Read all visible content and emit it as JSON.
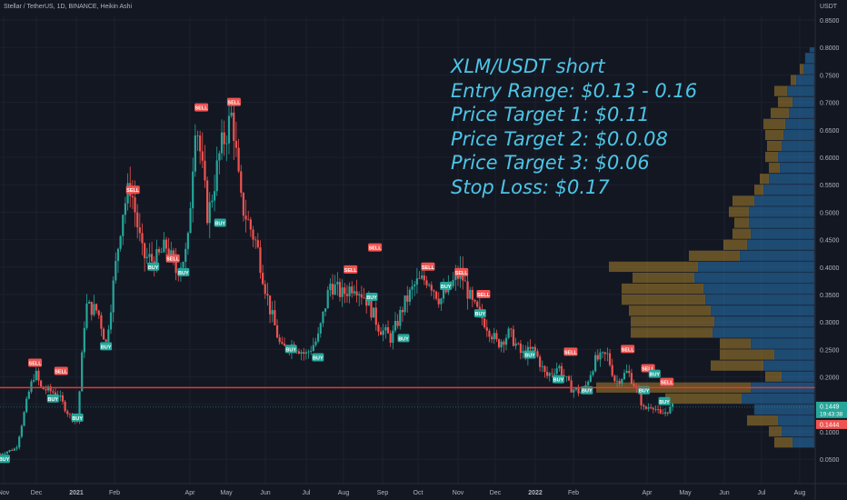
{
  "header": {
    "title": "Stellar / TetherUS, 1D, BINANCE, Heikin Ashi"
  },
  "currency_label": "USDT",
  "annotation_lines": [
    "XLM/USDT short",
    "Entry Range: $0.13 - 0.16",
    "Price Target 1: $0.11",
    "Price Target 2: $0.0.08",
    "Price Target 3: $0.06",
    "Stop Loss: $0.17"
  ],
  "colors": {
    "background": "#131722",
    "up_candle": "#26a69a",
    "down_candle": "#ef5350",
    "annotation": "#4dc5e6",
    "support_line": "#e53935",
    "sell_signal": "#ef5350",
    "buy_signal": "#26a69a",
    "volume_profile_up": "#2a7fc1",
    "volume_profile_down": "#c99a2e"
  },
  "chart_data": {
    "type": "candlestick",
    "ylim": [
      0.02,
      0.86
    ],
    "y_ticks": [
      "0.8500",
      "0.8000",
      "0.7500",
      "0.7000",
      "0.6500",
      "0.6000",
      "0.5500",
      "0.5000",
      "0.4500",
      "0.4000",
      "0.3500",
      "0.3000",
      "0.2500",
      "0.2000",
      "0.1500",
      "0.1000",
      "0.0500"
    ],
    "x_ticks": [
      "Nov",
      "Dec",
      "2021",
      "Feb",
      "Apr",
      "May",
      "Jun",
      "Jul",
      "Aug",
      "Sep",
      "Oct",
      "Nov",
      "Dec",
      "2022",
      "Feb",
      "Apr",
      "May",
      "Jun",
      "Jul",
      "Aug"
    ],
    "price_path": [
      [
        0,
        0.06
      ],
      [
        0.02,
        0.07
      ],
      [
        0.035,
        0.17
      ],
      [
        0.043,
        0.21
      ],
      [
        0.05,
        0.18
      ],
      [
        0.07,
        0.17
      ],
      [
        0.085,
        0.13
      ],
      [
        0.095,
        0.12
      ],
      [
        0.105,
        0.33
      ],
      [
        0.12,
        0.32
      ],
      [
        0.13,
        0.26
      ],
      [
        0.15,
        0.5
      ],
      [
        0.16,
        0.55
      ],
      [
        0.175,
        0.42
      ],
      [
        0.19,
        0.41
      ],
      [
        0.205,
        0.44
      ],
      [
        0.215,
        0.39
      ],
      [
        0.23,
        0.43
      ],
      [
        0.24,
        0.68
      ],
      [
        0.255,
        0.49
      ],
      [
        0.27,
        0.61
      ],
      [
        0.285,
        0.68
      ],
      [
        0.295,
        0.52
      ],
      [
        0.305,
        0.48
      ],
      [
        0.315,
        0.44
      ],
      [
        0.33,
        0.33
      ],
      [
        0.345,
        0.25
      ],
      [
        0.36,
        0.26
      ],
      [
        0.375,
        0.24
      ],
      [
        0.39,
        0.27
      ],
      [
        0.405,
        0.37
      ],
      [
        0.42,
        0.35
      ],
      [
        0.435,
        0.37
      ],
      [
        0.45,
        0.34
      ],
      [
        0.465,
        0.29
      ],
      [
        0.48,
        0.27
      ],
      [
        0.495,
        0.33
      ],
      [
        0.51,
        0.37
      ],
      [
        0.525,
        0.38
      ],
      [
        0.54,
        0.34
      ],
      [
        0.555,
        0.37
      ],
      [
        0.565,
        0.39
      ],
      [
        0.58,
        0.33
      ],
      [
        0.595,
        0.3
      ],
      [
        0.61,
        0.26
      ],
      [
        0.625,
        0.28
      ],
      [
        0.64,
        0.24
      ],
      [
        0.655,
        0.25
      ],
      [
        0.67,
        0.2
      ],
      [
        0.685,
        0.22
      ],
      [
        0.7,
        0.18
      ],
      [
        0.715,
        0.17
      ],
      [
        0.73,
        0.23
      ],
      [
        0.745,
        0.24
      ],
      [
        0.755,
        0.19
      ],
      [
        0.77,
        0.21
      ],
      [
        0.78,
        0.18
      ],
      [
        0.79,
        0.14
      ],
      [
        0.8,
        0.15
      ],
      [
        0.81,
        0.13
      ],
      [
        0.82,
        0.14
      ],
      [
        0.825,
        0.145
      ]
    ],
    "signals": [
      {
        "type": "BUY",
        "x": 0.005,
        "price": 0.05
      },
      {
        "type": "SELL",
        "x": 0.043,
        "price": 0.225
      },
      {
        "type": "SELL",
        "x": 0.075,
        "price": 0.21
      },
      {
        "type": "BUY",
        "x": 0.065,
        "price": 0.16
      },
      {
        "type": "BUY",
        "x": 0.095,
        "price": 0.125
      },
      {
        "type": "BUY",
        "x": 0.13,
        "price": 0.255
      },
      {
        "type": "SELL",
        "x": 0.163,
        "price": 0.54
      },
      {
        "type": "BUY",
        "x": 0.188,
        "price": 0.4
      },
      {
        "type": "SELL",
        "x": 0.212,
        "price": 0.415
      },
      {
        "type": "BUY",
        "x": 0.225,
        "price": 0.39
      },
      {
        "type": "SELL",
        "x": 0.247,
        "price": 0.69
      },
      {
        "type": "SELL",
        "x": 0.287,
        "price": 0.7
      },
      {
        "type": "BUY",
        "x": 0.27,
        "price": 0.48
      },
      {
        "type": "BUY",
        "x": 0.357,
        "price": 0.25
      },
      {
        "type": "BUY",
        "x": 0.39,
        "price": 0.235
      },
      {
        "type": "SELL",
        "x": 0.43,
        "price": 0.395
      },
      {
        "type": "SELL",
        "x": 0.46,
        "price": 0.435
      },
      {
        "type": "BUY",
        "x": 0.456,
        "price": 0.345
      },
      {
        "type": "BUY",
        "x": 0.495,
        "price": 0.27
      },
      {
        "type": "SELL",
        "x": 0.525,
        "price": 0.4
      },
      {
        "type": "SELL",
        "x": 0.566,
        "price": 0.39
      },
      {
        "type": "SELL",
        "x": 0.593,
        "price": 0.35
      },
      {
        "type": "BUY",
        "x": 0.547,
        "price": 0.365
      },
      {
        "type": "BUY",
        "x": 0.589,
        "price": 0.315
      },
      {
        "type": "BUY",
        "x": 0.65,
        "price": 0.24
      },
      {
        "type": "SELL",
        "x": 0.7,
        "price": 0.245
      },
      {
        "type": "BUY",
        "x": 0.685,
        "price": 0.195
      },
      {
        "type": "BUY",
        "x": 0.72,
        "price": 0.175
      },
      {
        "type": "SELL",
        "x": 0.77,
        "price": 0.25
      },
      {
        "type": "SELL",
        "x": 0.795,
        "price": 0.215
      },
      {
        "type": "SELL",
        "x": 0.818,
        "price": 0.19
      },
      {
        "type": "BUY",
        "x": 0.79,
        "price": 0.175
      },
      {
        "type": "BUY",
        "x": 0.815,
        "price": 0.155
      },
      {
        "type": "BUY",
        "x": 0.803,
        "price": 0.205
      }
    ],
    "support_line": 0.1805,
    "current_price_labels": [
      {
        "price": 0.1449,
        "text": "0.1449",
        "sub": "19:43:38",
        "color": "#26a69a"
      },
      {
        "price": 0.1444,
        "text": "0.1444",
        "color": "#ef5350"
      }
    ],
    "volume_profile": [
      {
        "lo": 0.79,
        "hi": 0.8,
        "up": 5,
        "down": 0
      },
      {
        "lo": 0.77,
        "hi": 0.79,
        "up": 10,
        "down": 0
      },
      {
        "lo": 0.75,
        "hi": 0.77,
        "up": 12,
        "down": 4
      },
      {
        "lo": 0.73,
        "hi": 0.75,
        "up": 20,
        "down": 6
      },
      {
        "lo": 0.71,
        "hi": 0.73,
        "up": 30,
        "down": 14
      },
      {
        "lo": 0.69,
        "hi": 0.71,
        "up": 24,
        "down": 16
      },
      {
        "lo": 0.67,
        "hi": 0.69,
        "up": 28,
        "down": 20
      },
      {
        "lo": 0.65,
        "hi": 0.67,
        "up": 32,
        "down": 24
      },
      {
        "lo": 0.63,
        "hi": 0.65,
        "up": 34,
        "down": 20
      },
      {
        "lo": 0.61,
        "hi": 0.63,
        "up": 36,
        "down": 16
      },
      {
        "lo": 0.59,
        "hi": 0.61,
        "up": 40,
        "down": 14
      },
      {
        "lo": 0.57,
        "hi": 0.59,
        "up": 38,
        "down": 12
      },
      {
        "lo": 0.55,
        "hi": 0.57,
        "up": 50,
        "down": 10
      },
      {
        "lo": 0.53,
        "hi": 0.55,
        "up": 56,
        "down": 10
      },
      {
        "lo": 0.51,
        "hi": 0.53,
        "up": 66,
        "down": 24
      },
      {
        "lo": 0.49,
        "hi": 0.51,
        "up": 72,
        "down": 22
      },
      {
        "lo": 0.47,
        "hi": 0.49,
        "up": 72,
        "down": 16
      },
      {
        "lo": 0.45,
        "hi": 0.47,
        "up": 70,
        "down": 20
      },
      {
        "lo": 0.43,
        "hi": 0.45,
        "up": 74,
        "down": 26
      },
      {
        "lo": 0.41,
        "hi": 0.43,
        "up": 82,
        "down": 56
      },
      {
        "lo": 0.39,
        "hi": 0.41,
        "up": 128,
        "down": 98
      },
      {
        "lo": 0.37,
        "hi": 0.39,
        "up": 132,
        "down": 68
      },
      {
        "lo": 0.35,
        "hi": 0.37,
        "up": 122,
        "down": 90
      },
      {
        "lo": 0.33,
        "hi": 0.35,
        "up": 120,
        "down": 92
      },
      {
        "lo": 0.31,
        "hi": 0.33,
        "up": 114,
        "down": 90
      },
      {
        "lo": 0.29,
        "hi": 0.31,
        "up": 110,
        "down": 92
      },
      {
        "lo": 0.27,
        "hi": 0.29,
        "up": 112,
        "down": 90
      },
      {
        "lo": 0.25,
        "hi": 0.27,
        "up": 70,
        "down": 34
      },
      {
        "lo": 0.23,
        "hi": 0.25,
        "up": 44,
        "down": 60
      },
      {
        "lo": 0.21,
        "hi": 0.23,
        "up": 56,
        "down": 58
      },
      {
        "lo": 0.19,
        "hi": 0.21,
        "up": 36,
        "down": 18
      },
      {
        "lo": 0.17,
        "hi": 0.19,
        "up": 70,
        "down": 170
      },
      {
        "lo": 0.15,
        "hi": 0.17,
        "up": 80,
        "down": 84
      },
      {
        "lo": 0.13,
        "hi": 0.15,
        "up": 66,
        "down": 0
      },
      {
        "lo": 0.11,
        "hi": 0.13,
        "up": 40,
        "down": 34
      },
      {
        "lo": 0.09,
        "hi": 0.11,
        "up": 36,
        "down": 14
      },
      {
        "lo": 0.07,
        "hi": 0.09,
        "up": 24,
        "down": 20
      }
    ]
  }
}
